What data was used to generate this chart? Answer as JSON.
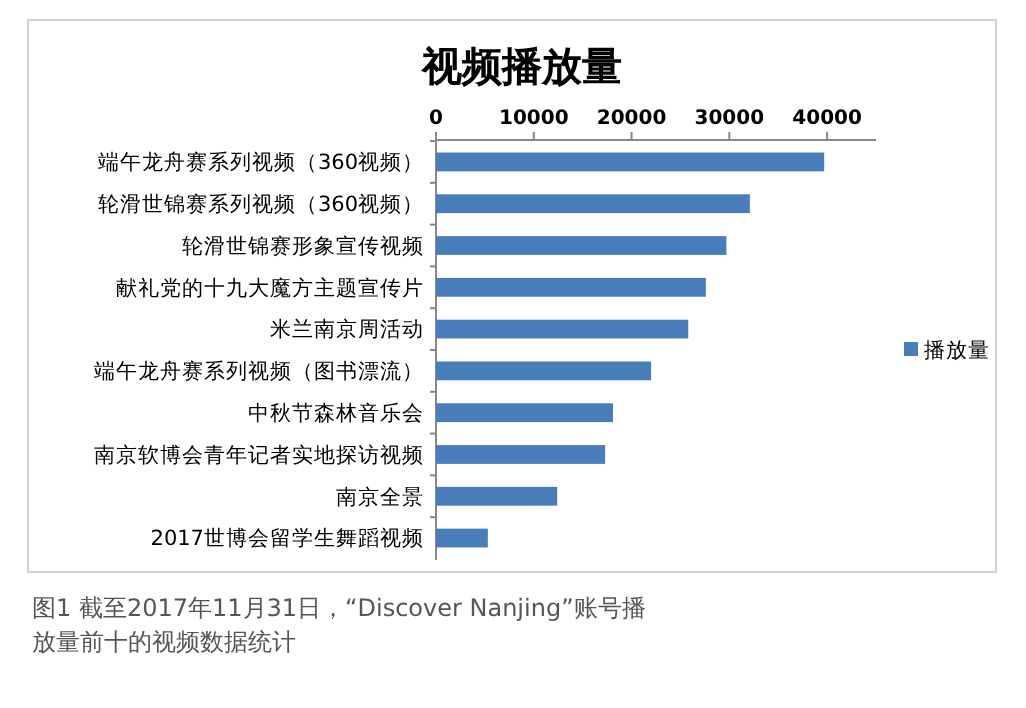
{
  "chart_data": {
    "type": "bar",
    "orientation": "horizontal",
    "title": "视频播放量",
    "categories": [
      "端午龙舟赛系列视频（360视频）",
      "轮滑世锦赛系列视频（360视频）",
      "轮滑世锦赛形象宣传视频",
      "献礼党的十九大魔方主题宣传片",
      "米兰南京周活动",
      "端午龙舟赛系列视频（图书漂流）",
      "中秋节森林音乐会",
      "南京软博会青年记者实地探访视频",
      "南京全景",
      "2017世博会留学生舞蹈视频"
    ],
    "series": [
      {
        "name": "播放量",
        "color": "#4a7ebb",
        "values": [
          39700,
          32100,
          29700,
          27600,
          25800,
          22000,
          18100,
          17300,
          12400,
          5300
        ]
      }
    ],
    "xlim": [
      0,
      45000
    ],
    "xticks": [
      0,
      10000,
      20000,
      30000,
      40000
    ],
    "legend": "right",
    "annotations": [
      "图1 截至2017年11月31日，“Discover Nanjing”账号播放量前十的视频数据统计"
    ]
  }
}
